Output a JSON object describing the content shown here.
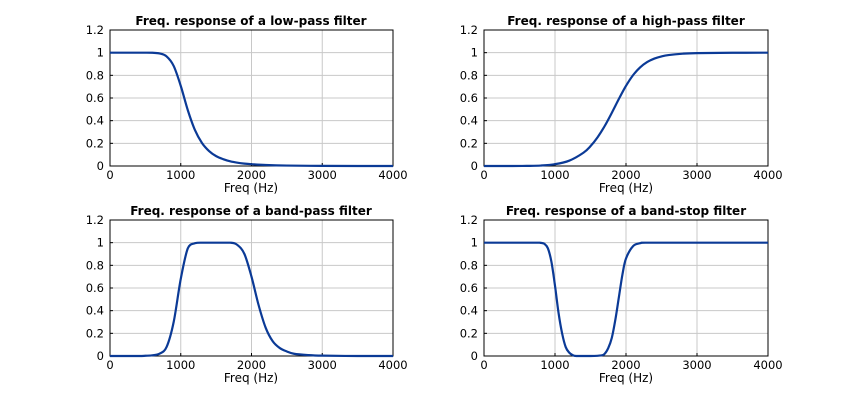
{
  "chart_data": [
    {
      "type": "line",
      "title": "Freq. response of a low-pass filter",
      "xlabel": "Freq (Hz)",
      "ylabel": "",
      "xlim": [
        0,
        4000
      ],
      "ylim": [
        0,
        1.2
      ],
      "xticks": [
        "0",
        "1000",
        "2000",
        "3000",
        "4000"
      ],
      "yticks": [
        "0",
        "0.2",
        "0.4",
        "0.6",
        "0.8",
        "1",
        "1.2"
      ],
      "grid": true,
      "color": "#0b3a96",
      "x": [
        0,
        200,
        400,
        500,
        600,
        700,
        800,
        900,
        1000,
        1100,
        1200,
        1300,
        1400,
        1500,
        1600,
        1700,
        1800,
        1900,
        2000,
        2200,
        2500,
        3000,
        3500,
        4000
      ],
      "y": [
        1,
        1,
        1,
        1,
        0.999,
        0.993,
        0.967,
        0.883,
        0.707,
        0.492,
        0.318,
        0.203,
        0.132,
        0.087,
        0.06,
        0.041,
        0.029,
        0.021,
        0.016,
        0.009,
        0.004,
        0.001,
        0,
        0
      ]
    },
    {
      "type": "line",
      "title": "Freq. response of a high-pass filter",
      "xlabel": "Freq (Hz)",
      "ylabel": "",
      "xlim": [
        0,
        4000
      ],
      "ylim": [
        0,
        1.2
      ],
      "xticks": [
        "0",
        "1000",
        "2000",
        "3000",
        "4000"
      ],
      "yticks": [
        "0",
        "0.2",
        "0.4",
        "0.6",
        "0.8",
        "1",
        "1.2"
      ],
      "grid": true,
      "color": "#0b3a96",
      "x": [
        0,
        400,
        600,
        800,
        1000,
        1200,
        1400,
        1500,
        1600,
        1700,
        1800,
        1900,
        2000,
        2100,
        2200,
        2300,
        2400,
        2500,
        2600,
        2800,
        3000,
        3500,
        4000
      ],
      "y": [
        0,
        0,
        0.001,
        0.004,
        0.016,
        0.047,
        0.117,
        0.175,
        0.254,
        0.353,
        0.469,
        0.592,
        0.707,
        0.802,
        0.871,
        0.918,
        0.948,
        0.967,
        0.979,
        0.991,
        0.996,
        0.999,
        1
      ]
    },
    {
      "type": "line",
      "title": "Freq. response of a band-pass filter",
      "xlabel": "Freq (Hz)",
      "ylabel": "",
      "xlim": [
        0,
        4000
      ],
      "ylim": [
        0,
        1.2
      ],
      "xticks": [
        "0",
        "1000",
        "2000",
        "3000",
        "4000"
      ],
      "yticks": [
        "0",
        "0.2",
        "0.4",
        "0.6",
        "0.8",
        "1",
        "1.2"
      ],
      "grid": true,
      "color": "#0b3a96",
      "x": [
        0,
        400,
        500,
        600,
        700,
        800,
        900,
        1000,
        1100,
        1200,
        1300,
        1500,
        1700,
        1800,
        1900,
        2000,
        2100,
        2200,
        2300,
        2400,
        2500,
        2600,
        2800,
        3000,
        3500,
        4000
      ],
      "y": [
        0,
        0,
        0.002,
        0.006,
        0.02,
        0.08,
        0.3,
        0.68,
        0.95,
        0.995,
        1,
        1,
        1,
        0.98,
        0.9,
        0.7,
        0.45,
        0.25,
        0.13,
        0.07,
        0.04,
        0.02,
        0.008,
        0.003,
        0,
        0
      ]
    },
    {
      "type": "line",
      "title": "Freq. response of a band-stop filter",
      "xlabel": "Freq (Hz)",
      "ylabel": "",
      "xlim": [
        0,
        4000
      ],
      "ylim": [
        0,
        1.2
      ],
      "xticks": [
        "0",
        "1000",
        "2000",
        "3000",
        "4000"
      ],
      "yticks": [
        "0",
        "0.2",
        "0.4",
        "0.6",
        "0.8",
        "1",
        "1.2"
      ],
      "grid": true,
      "color": "#0b3a96",
      "x": [
        0,
        700,
        800,
        850,
        900,
        950,
        1000,
        1050,
        1100,
        1150,
        1200,
        1250,
        1300,
        1500,
        1650,
        1700,
        1750,
        1800,
        1850,
        1900,
        1950,
        2000,
        2100,
        2200,
        2300,
        3000,
        4000
      ],
      "y": [
        1,
        1,
        0.998,
        0.99,
        0.95,
        0.83,
        0.62,
        0.38,
        0.2,
        0.08,
        0.03,
        0.008,
        0,
        0,
        0.005,
        0.02,
        0.07,
        0.16,
        0.32,
        0.52,
        0.72,
        0.86,
        0.97,
        0.995,
        1,
        1,
        1
      ]
    }
  ]
}
